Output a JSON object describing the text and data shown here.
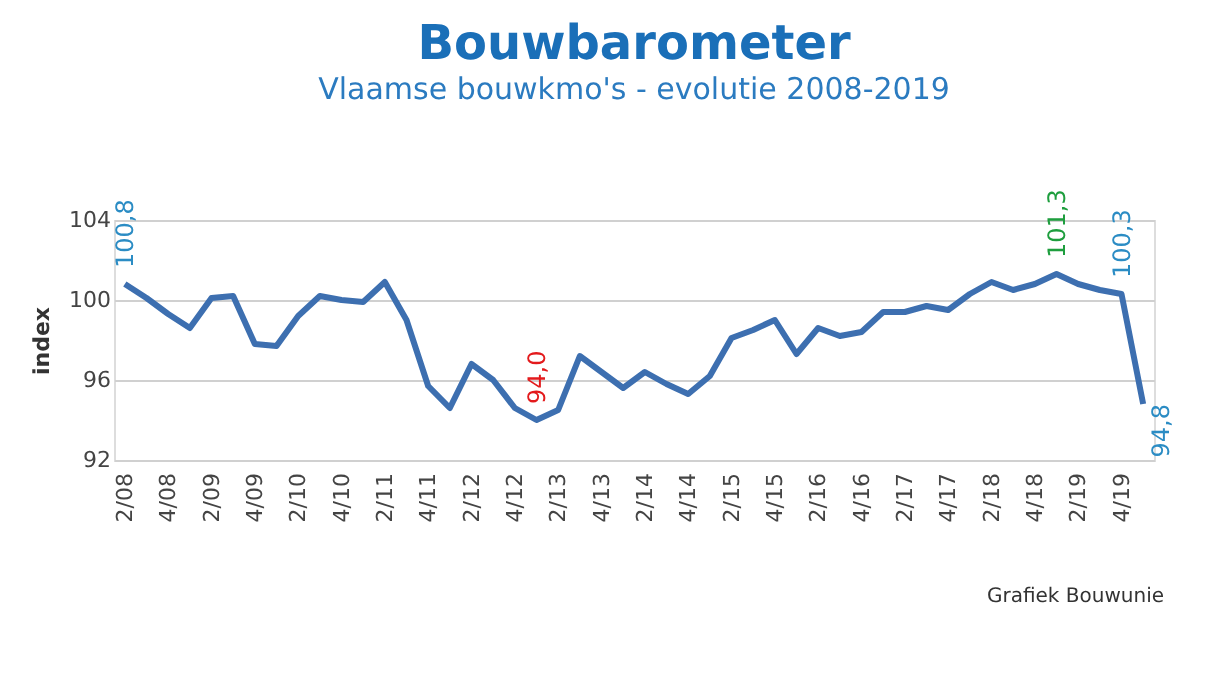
{
  "chart_data": {
    "type": "line",
    "title": "Bouwbarometer",
    "subtitle": "Vlaamse bouwkmo's - evolutie 2008-2019",
    "ylabel": "index",
    "categories": [
      "2/08",
      null,
      "4/08",
      null,
      "2/09",
      null,
      "4/09",
      null,
      "2/10",
      null,
      "4/10",
      null,
      "2/11",
      null,
      "4/11",
      null,
      "2/12",
      null,
      "4/12",
      null,
      "2/13",
      null,
      "4/13",
      null,
      "2/14",
      null,
      "4/14",
      null,
      "2/15",
      null,
      "4/15",
      null,
      "2/16",
      null,
      "4/16",
      null,
      "2/17",
      null,
      "4/17",
      null,
      "2/18",
      null,
      "4/18",
      null,
      "2/19",
      null,
      "4/19",
      null
    ],
    "series": [
      {
        "color": "#3d6fb0",
        "values": [
          100.8,
          100.1,
          99.3,
          98.6,
          100.1,
          100.2,
          97.8,
          97.7,
          99.2,
          100.2,
          100.0,
          99.9,
          100.9,
          99.0,
          95.7,
          94.6,
          96.8,
          96.0,
          94.6,
          94.0,
          94.5,
          97.2,
          96.4,
          95.6,
          96.4,
          95.8,
          95.3,
          96.2,
          98.1,
          98.5,
          99.0,
          97.3,
          98.6,
          98.2,
          98.4,
          99.4,
          99.4,
          99.7,
          99.5,
          100.3,
          100.9,
          100.5,
          100.8,
          101.3,
          100.8,
          100.5,
          100.3,
          94.8
        ],
        "value_labels": [
          "100,8",
          null,
          null,
          null,
          null,
          null,
          null,
          null,
          null,
          null,
          null,
          null,
          null,
          null,
          null,
          null,
          null,
          null,
          null,
          "94,0",
          null,
          null,
          null,
          null,
          null,
          null,
          null,
          null,
          null,
          null,
          null,
          null,
          null,
          null,
          null,
          null,
          null,
          null,
          null,
          null,
          null,
          null,
          null,
          "101,3",
          null,
          null,
          "100,3",
          "94,8"
        ]
      }
    ],
    "ylim": [
      92,
      104
    ],
    "yticks": [
      92,
      96,
      100,
      104
    ],
    "grid": "y",
    "annotations": [
      "Grafiek Bouwunie"
    ]
  }
}
